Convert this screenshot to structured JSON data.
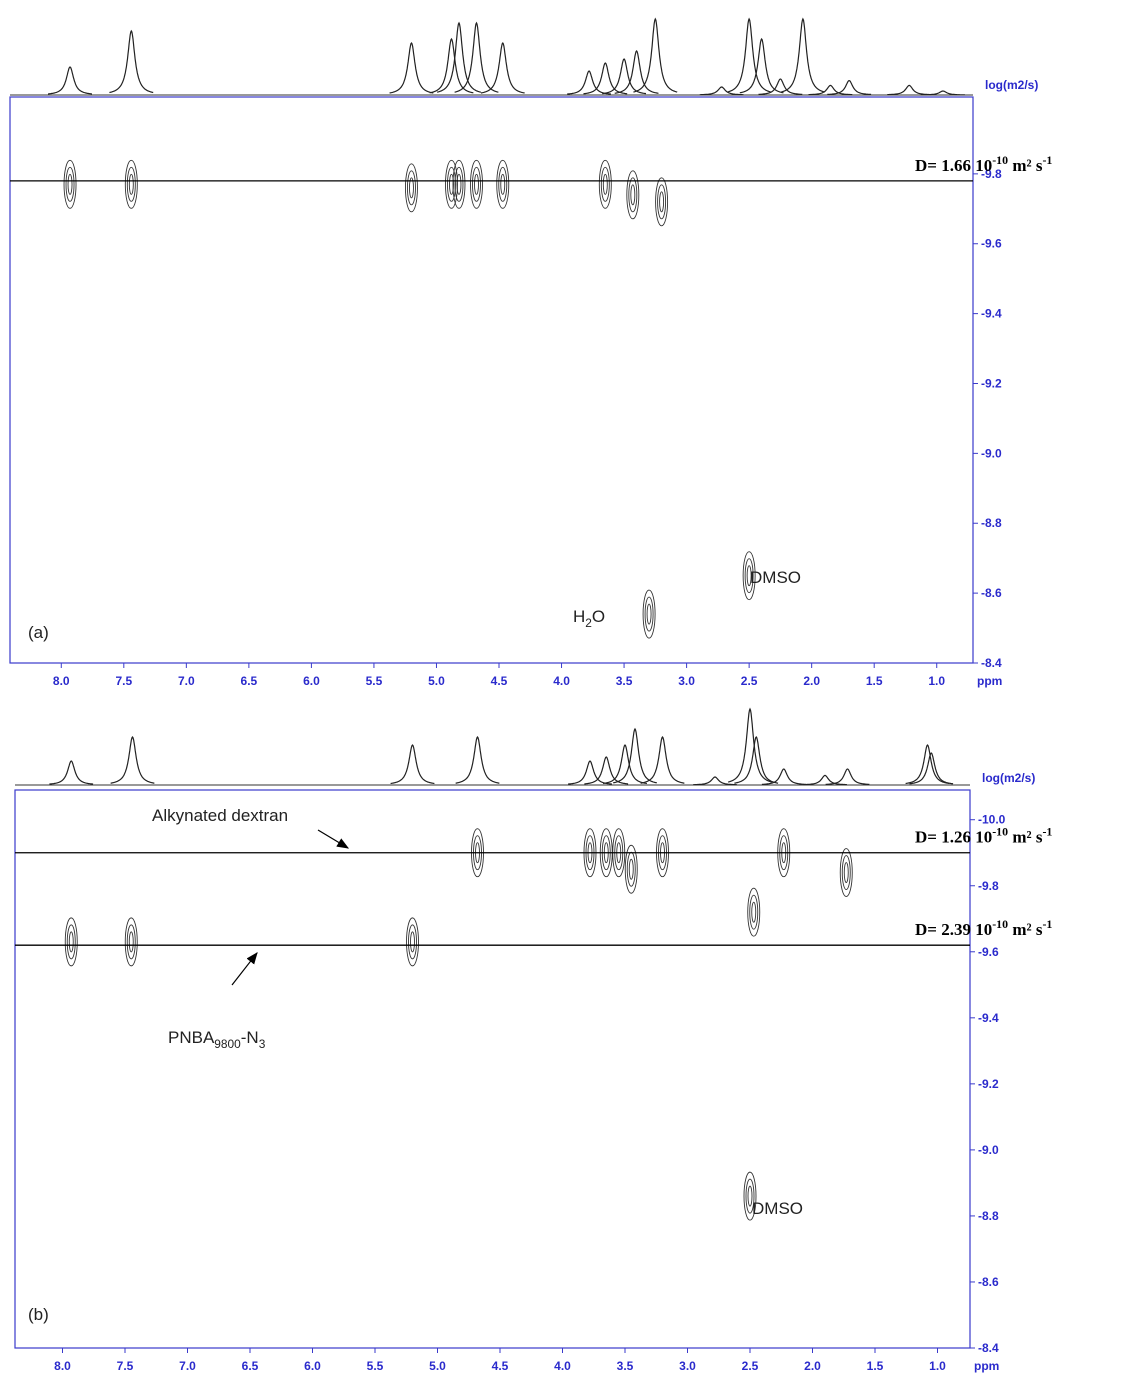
{
  "chart_data": [
    {
      "type": "dosy",
      "panel_label": "(a)",
      "xlabel": "ppm",
      "ylabel": "log(m2/s)",
      "xlim": [
        8.41,
        0.71
      ],
      "xticks": [
        {
          "value": 8,
          "label": "8.0"
        },
        7.5,
        {
          "value": 7,
          "label": "7.0"
        },
        6.5,
        {
          "value": 6,
          "label": "6.0"
        },
        5.5,
        {
          "value": 5,
          "label": "5.0"
        },
        4.5,
        {
          "value": 4,
          "label": "4.0"
        },
        3.5,
        {
          "value": 3,
          "label": "3.0"
        },
        2.5,
        {
          "value": 2,
          "label": "2.0"
        },
        1.5,
        {
          "value": 1,
          "label": "1.0"
        }
      ],
      "ylim": [
        -8.4,
        -10.02
      ],
      "yticks": [
        -9.8,
        -9.6,
        -9.4,
        -9.2,
        {
          "value": -9,
          "label": "-9.0"
        },
        -8.8,
        -8.6,
        -8.4
      ],
      "projection": {
        "x": [
          7.93,
          7.44,
          5.2,
          4.88,
          4.82,
          4.68,
          4.47,
          3.78,
          3.65,
          3.5,
          3.4,
          3.25,
          2.72,
          2.5,
          2.4,
          2.25,
          2.07,
          1.85,
          1.7,
          1.22,
          0.95
        ],
        "values": [
          0.35,
          0.8,
          0.65,
          0.7,
          0.9,
          0.9,
          0.65,
          0.3,
          0.4,
          0.45,
          0.55,
          0.95,
          0.1,
          0.95,
          0.7,
          0.2,
          0.95,
          0.12,
          0.18,
          0.12,
          0.05
        ]
      },
      "peaks": {
        "x": [
          7.93,
          7.44,
          5.2,
          4.88,
          4.82,
          4.68,
          4.47,
          3.65,
          3.43,
          3.2,
          3.3,
          2.5
        ],
        "y": [
          -9.77,
          -9.77,
          -9.76,
          -9.77,
          -9.77,
          -9.77,
          -9.77,
          -9.77,
          -9.74,
          -9.72,
          -8.54,
          -8.65
        ]
      },
      "lines": [
        {
          "value": -9.78,
          "label": [
            "D= 1.66 10",
            "-10",
            " m² s",
            "-1"
          ]
        }
      ],
      "annotations": [
        [
          "H",
          "2",
          "O"
        ],
        [
          "DMSO"
        ]
      ]
    },
    {
      "type": "dosy",
      "panel_label": "(b)",
      "xlabel": "ppm",
      "ylabel": "log(m2/s)",
      "xlim": [
        8.38,
        0.74
      ],
      "xticks": [
        {
          "value": 8,
          "label": "8.0"
        },
        7.5,
        {
          "value": 7,
          "label": "7.0"
        },
        6.5,
        {
          "value": 6,
          "label": "6.0"
        },
        5.5,
        {
          "value": 5,
          "label": "5.0"
        },
        4.5,
        {
          "value": 4,
          "label": "4.0"
        },
        3.5,
        {
          "value": 3,
          "label": "3.0"
        },
        2.5,
        {
          "value": 2,
          "label": "2.0"
        },
        1.5,
        {
          "value": 1,
          "label": "1.0"
        }
      ],
      "ylim": [
        -8.4,
        -10.09
      ],
      "yticks": [
        {
          "value": -10,
          "label": "-10.0"
        },
        -9.8,
        -9.6,
        -9.4,
        -9.2,
        {
          "value": -9,
          "label": "-9.0"
        },
        -8.8,
        -8.6,
        -8.4
      ],
      "projection": {
        "x": [
          7.93,
          7.44,
          5.2,
          4.68,
          3.78,
          3.65,
          3.5,
          3.42,
          3.2,
          2.78,
          2.5,
          2.45,
          2.23,
          1.9,
          1.72,
          1.08,
          1.05
        ],
        "values": [
          0.3,
          0.6,
          0.5,
          0.6,
          0.3,
          0.35,
          0.5,
          0.7,
          0.6,
          0.1,
          0.95,
          0.6,
          0.2,
          0.12,
          0.2,
          0.5,
          0.4
        ]
      },
      "peaks": {
        "x": [
          4.68,
          3.78,
          3.65,
          3.55,
          3.45,
          3.2,
          2.23,
          1.73,
          2.47,
          7.93,
          7.45,
          5.2,
          2.5
        ],
        "y": [
          -9.9,
          -9.9,
          -9.9,
          -9.9,
          -9.85,
          -9.9,
          -9.9,
          -9.84,
          -9.72,
          -9.63,
          -9.63,
          -9.63,
          -8.86
        ]
      },
      "lines": [
        {
          "value": -9.9,
          "label": [
            "D= 1.26 10",
            "-10",
            " m² s",
            "-1"
          ]
        },
        {
          "value": -9.62,
          "label": [
            "D= 2.39 10",
            "-10",
            " m² s",
            "-1"
          ]
        }
      ],
      "annotations": [
        [
          "Alkynated dextran"
        ],
        [
          "PNBA",
          "9800",
          "-N",
          "3"
        ],
        [
          "DMSO"
        ]
      ]
    }
  ]
}
